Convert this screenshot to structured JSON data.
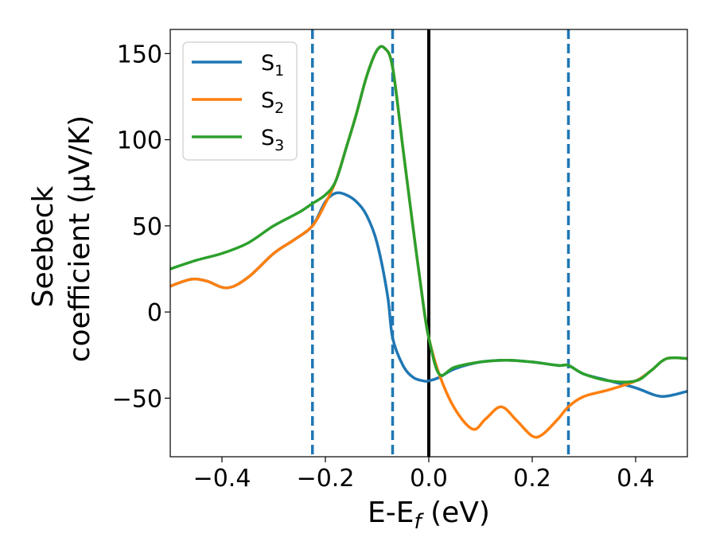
{
  "chart_data": {
    "type": "line",
    "xlabel_main": "E-E",
    "xlabel_sub": "f",
    "xlabel_unit": " (eV)",
    "ylabel_line1": "Seebeck",
    "ylabel_line2": "coefficient  (μV/K)",
    "xlim": [
      -0.5,
      0.5
    ],
    "ylim": [
      -84,
      164
    ],
    "xticks": [
      -0.4,
      -0.2,
      0.0,
      0.2,
      0.4
    ],
    "xtick_labels": [
      "−0.4",
      "−0.2",
      "0.0",
      "0.2",
      "0.4"
    ],
    "yticks": [
      -50,
      0,
      50,
      100,
      150
    ],
    "ytick_labels": [
      "−50",
      "0",
      "50",
      "100",
      "150"
    ],
    "legend_position": "top-left",
    "vertical_lines": [
      {
        "x": -0.225,
        "style": "dashed",
        "color": "#1f77b4"
      },
      {
        "x": -0.07,
        "style": "dashed",
        "color": "#1f77b4"
      },
      {
        "x": 0.27,
        "style": "dashed",
        "color": "#1f77b4"
      },
      {
        "x": 0.0,
        "style": "solid",
        "color": "#000000"
      }
    ],
    "series": [
      {
        "name": "S",
        "sub": "1",
        "color": "#1f77b4",
        "x": [
          -0.5,
          -0.46,
          -0.43,
          -0.39,
          -0.35,
          -0.3,
          -0.26,
          -0.225,
          -0.2,
          -0.18,
          -0.16,
          -0.14,
          -0.12,
          -0.1,
          -0.08,
          -0.07,
          -0.05,
          -0.03,
          -0.01,
          0.0,
          0.02,
          0.05,
          0.1,
          0.15,
          0.2,
          0.25,
          0.27,
          0.3,
          0.35,
          0.4,
          0.45,
          0.5
        ],
        "y": [
          15,
          19,
          18,
          14,
          20,
          34,
          42,
          50,
          64,
          69,
          68,
          64,
          56,
          40,
          10,
          -15,
          -31,
          -38,
          -40,
          -40,
          -38,
          -33,
          -29,
          -28,
          -29,
          -31,
          -31,
          -36,
          -40,
          -44,
          -49,
          -46
        ]
      },
      {
        "name": "S",
        "sub": "2",
        "color": "#ff7f0e",
        "x": [
          -0.5,
          -0.46,
          -0.43,
          -0.39,
          -0.35,
          -0.3,
          -0.26,
          -0.225,
          -0.2,
          -0.18,
          -0.16,
          -0.14,
          -0.12,
          -0.1,
          -0.085,
          -0.07,
          -0.05,
          -0.03,
          -0.01,
          0.0,
          0.02,
          0.05,
          0.085,
          0.11,
          0.14,
          0.17,
          0.2,
          0.22,
          0.25,
          0.27,
          0.3,
          0.35,
          0.4,
          0.43,
          0.46,
          0.5
        ],
        "y": [
          15,
          19,
          18,
          14,
          20,
          34,
          42,
          50,
          63,
          76,
          95,
          115,
          137,
          152,
          153,
          142,
          95,
          48,
          3,
          -15,
          -36,
          -56,
          -68,
          -62,
          -55,
          -63,
          -72,
          -71,
          -62,
          -55,
          -49,
          -45,
          -40,
          -34,
          -27,
          -27
        ]
      },
      {
        "name": "S",
        "sub": "3",
        "color": "#2ca02c",
        "x": [
          -0.5,
          -0.45,
          -0.4,
          -0.35,
          -0.3,
          -0.25,
          -0.225,
          -0.2,
          -0.18,
          -0.16,
          -0.14,
          -0.12,
          -0.1,
          -0.085,
          -0.07,
          -0.05,
          -0.03,
          -0.01,
          0.0,
          0.02,
          0.05,
          0.1,
          0.15,
          0.2,
          0.25,
          0.27,
          0.3,
          0.35,
          0.4,
          0.43,
          0.46,
          0.5
        ],
        "y": [
          25,
          30,
          34,
          40,
          50,
          58,
          63,
          68,
          76,
          95,
          115,
          137,
          152,
          153,
          142,
          95,
          48,
          3,
          -15,
          -36,
          -32,
          -29,
          -28,
          -29,
          -31,
          -31,
          -36,
          -40,
          -40,
          -34,
          -27,
          -27
        ]
      }
    ]
  }
}
